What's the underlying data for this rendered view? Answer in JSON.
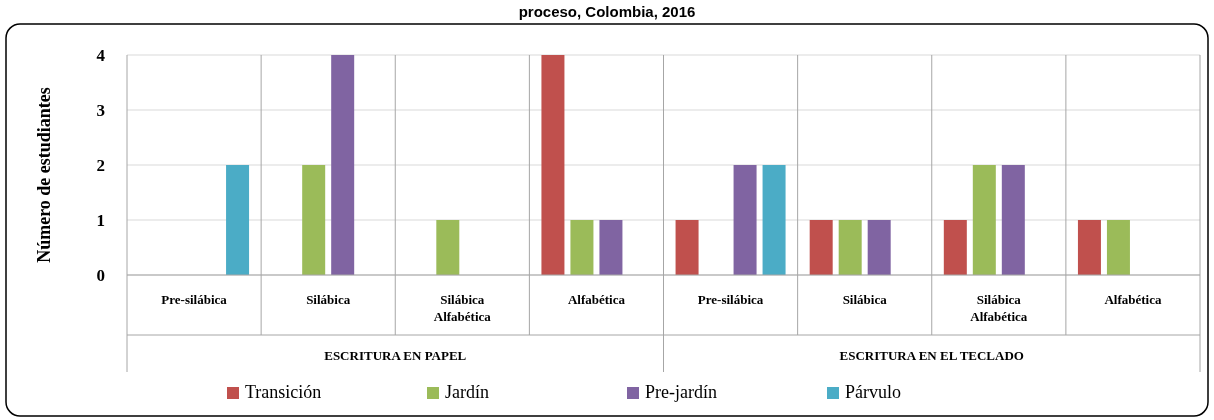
{
  "chart_data": {
    "type": "bar",
    "title": "proceso, Colombia, 2016",
    "ylabel": "Número de estudiantes",
    "categories": [
      "Pre-silábica",
      "Silábica",
      "Silábica Alfabética",
      "Alfabética",
      "Pre-silábica",
      "Silábica",
      "Silábica Alfabética",
      "Alfabética"
    ],
    "series": [
      {
        "name": "Transición",
        "color": "#c0504d",
        "values": [
          0,
          0,
          0,
          4,
          1,
          1,
          1,
          1
        ]
      },
      {
        "name": "Jardín",
        "color": "#9bbb59",
        "values": [
          0,
          2,
          1,
          1,
          0,
          1,
          2,
          1
        ]
      },
      {
        "name": "Pre-jardín",
        "color": "#8064a2",
        "values": [
          0,
          4,
          0,
          1,
          2,
          1,
          2,
          0
        ]
      },
      {
        "name": "Párvulo",
        "color": "#4bacc6",
        "values": [
          2,
          0,
          0,
          0,
          2,
          0,
          0,
          0
        ]
      }
    ],
    "annotations": [
      "ESCRITURA EN PAPEL",
      "ESCRITURA EN EL TECLADO"
    ],
    "ylim": [
      0,
      4
    ],
    "yticks": [
      0,
      1,
      2,
      3,
      4
    ],
    "grid": "y",
    "legend": "bottom"
  }
}
